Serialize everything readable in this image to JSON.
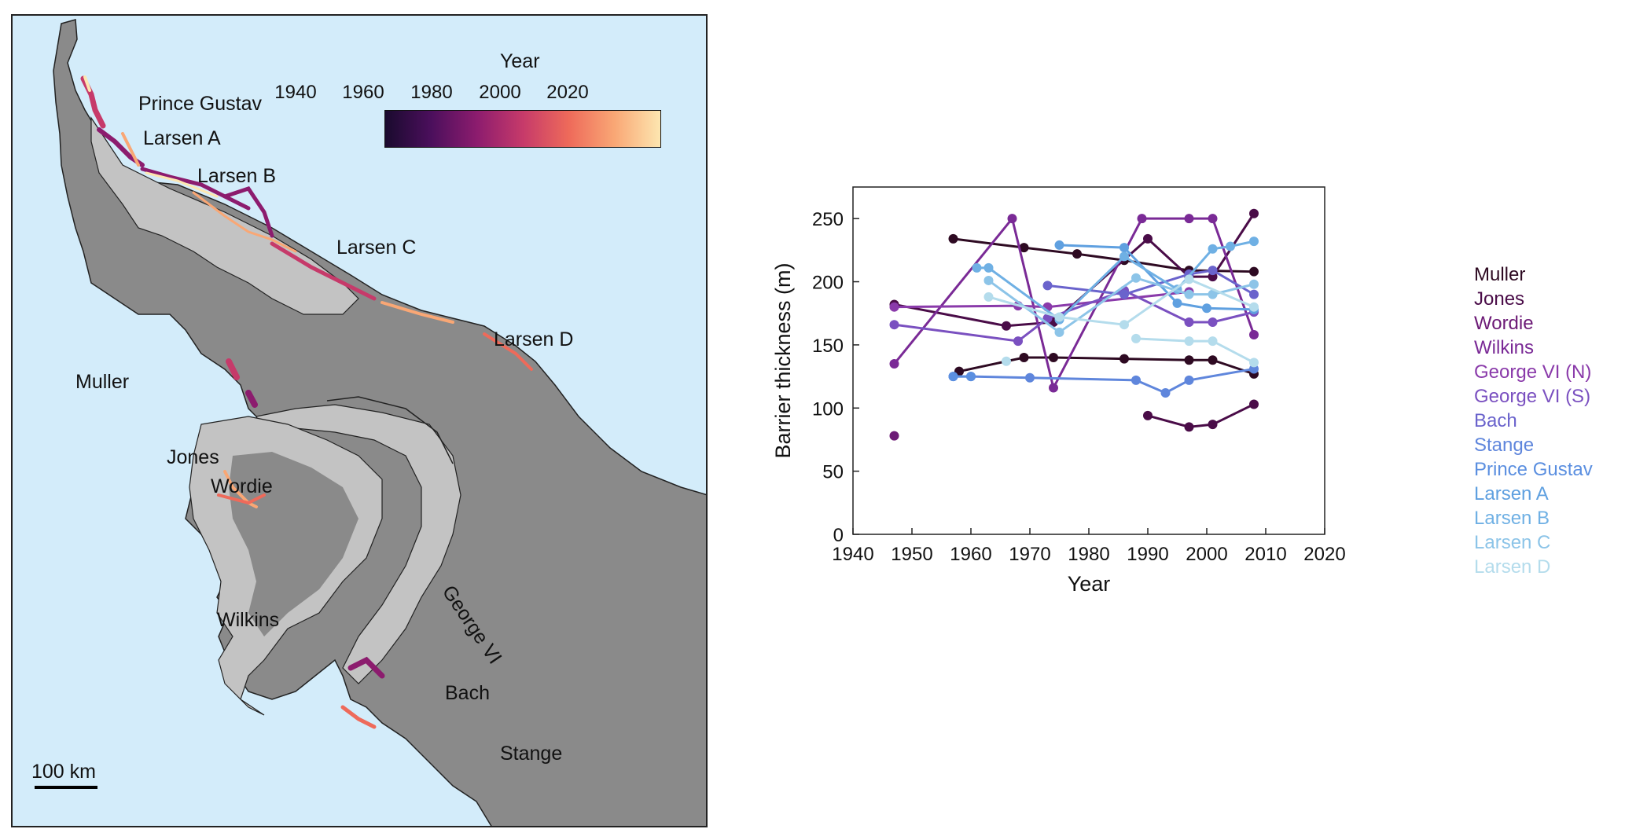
{
  "map": {
    "colorbar": {
      "title": "Year",
      "ticks": [
        "1940",
        "1960",
        "1980",
        "2000",
        "2020"
      ],
      "colors": [
        "#1a0a2e",
        "#4b0f5c",
        "#8c1c6e",
        "#c63a6a",
        "#ee6a5a",
        "#f9a775",
        "#fde6b0"
      ]
    },
    "labels": {
      "prince_gustav": "Prince Gustav",
      "larsen_a": "Larsen A",
      "larsen_b": "Larsen B",
      "larsen_c": "Larsen C",
      "larsen_d": "Larsen D",
      "muller": "Muller",
      "jones": "Jones",
      "wordie": "Wordie",
      "george_vi": "George VI",
      "wilkins": "Wilkins",
      "bach": "Bach",
      "stange": "Stange"
    },
    "scale_label": "100 km",
    "colors": {
      "ocean": "#d3ecfa",
      "land": "#8a8a8a",
      "ice_shelf": "#c3c3c3"
    }
  },
  "chart_data": {
    "type": "line",
    "xlabel": "Year",
    "ylabel": "Barrier thickness (m)",
    "xlim": [
      1940,
      2020
    ],
    "ylim": [
      0,
      275
    ],
    "xticks": [
      1940,
      1950,
      1960,
      1970,
      1980,
      1990,
      2000,
      2010,
      2020
    ],
    "yticks": [
      0,
      50,
      100,
      150,
      200,
      250
    ],
    "legend_position": "right",
    "series": [
      {
        "name": "Muller",
        "color": "#2e0a22",
        "points": [
          [
            1957,
            234
          ],
          [
            1969,
            227
          ],
          [
            1978,
            222
          ],
          [
            1986,
            217
          ],
          [
            1997,
            209
          ],
          [
            2008,
            208
          ]
        ],
        "points2": [
          [
            1958,
            129
          ],
          [
            1969,
            140
          ],
          [
            1974,
            140
          ],
          [
            1986,
            139
          ],
          [
            1997,
            138
          ],
          [
            2001,
            138
          ],
          [
            2008,
            127
          ]
        ]
      },
      {
        "name": "Jones",
        "color": "#4a0c48",
        "points": [
          [
            1947,
            182
          ],
          [
            1966,
            165
          ],
          [
            1974,
            168
          ],
          [
            1990,
            234
          ],
          [
            1997,
            204
          ],
          [
            2001,
            204
          ],
          [
            2008,
            254
          ]
        ],
        "points2": [
          [
            1990,
            94
          ],
          [
            1997,
            85
          ],
          [
            2001,
            87
          ],
          [
            2008,
            103
          ]
        ]
      },
      {
        "name": "Wordie",
        "color": "#6c1a76",
        "points": [
          [
            1947,
            78
          ]
        ]
      },
      {
        "name": "Wilkins",
        "color": "#7a2a96",
        "points": [
          [
            1947,
            135
          ],
          [
            1967,
            250
          ],
          [
            1974,
            116
          ],
          [
            1989,
            250
          ],
          [
            1997,
            250
          ],
          [
            2001,
            250
          ],
          [
            2008,
            158
          ]
        ]
      },
      {
        "name": "George VI (N)",
        "color": "#8a3aaa",
        "points": [
          [
            1947,
            180
          ],
          [
            1968,
            181
          ],
          [
            1973,
            180
          ],
          [
            1997,
            192
          ]
        ]
      },
      {
        "name": "George VI (S)",
        "color": "#7a50c0",
        "points": [
          [
            1947,
            166
          ],
          [
            1968,
            153
          ],
          [
            1973,
            171
          ],
          [
            1986,
            193
          ],
          [
            1997,
            168
          ],
          [
            2001,
            168
          ],
          [
            2008,
            176
          ]
        ]
      },
      {
        "name": "Bach",
        "color": "#6a63cc",
        "points": [
          [
            1973,
            197
          ],
          [
            1986,
            190
          ],
          [
            1997,
            206
          ],
          [
            2001,
            209
          ],
          [
            2008,
            190
          ]
        ]
      },
      {
        "name": "Stange",
        "color": "#5f86dc",
        "points": [
          [
            1957,
            125
          ],
          [
            1960,
            125
          ],
          [
            1970,
            124
          ],
          [
            1988,
            122
          ],
          [
            1993,
            112
          ],
          [
            1997,
            122
          ],
          [
            2008,
            131
          ]
        ]
      },
      {
        "name": "Prince Gustav",
        "color": "#5b8fe0",
        "points": [
          [
            1957,
            125
          ],
          [
            1960,
            125
          ]
        ]
      },
      {
        "name": "Larsen A",
        "color": "#5fa0e0",
        "points": [
          [
            1975,
            229
          ],
          [
            1986,
            227
          ],
          [
            1995,
            183
          ],
          [
            2000,
            179
          ],
          [
            2008,
            178
          ]
        ]
      },
      {
        "name": "Larsen B",
        "color": "#6fb0e4",
        "points": [
          [
            1961,
            211
          ],
          [
            1963,
            211
          ],
          [
            1975,
            170
          ],
          [
            1986,
            220
          ],
          [
            1995,
            194
          ],
          [
            2001,
            226
          ],
          [
            2004,
            228
          ],
          [
            2008,
            232
          ]
        ]
      },
      {
        "name": "Larsen C",
        "color": "#8cc4e8",
        "points": [
          [
            1963,
            201
          ],
          [
            1975,
            160
          ],
          [
            1988,
            203
          ],
          [
            1997,
            190
          ],
          [
            2001,
            190
          ],
          [
            2008,
            198
          ]
        ]
      },
      {
        "name": "Larsen D",
        "color": "#b4dcec",
        "points": [
          [
            1963,
            188
          ],
          [
            1975,
            172
          ],
          [
            1986,
            166
          ],
          [
            1997,
            202
          ],
          [
            2008,
            180
          ]
        ],
        "points2": [
          [
            1966,
            137
          ]
        ],
        "points3": [
          [
            1988,
            155
          ],
          [
            1997,
            153
          ],
          [
            2001,
            153
          ],
          [
            2008,
            136
          ]
        ]
      }
    ]
  }
}
